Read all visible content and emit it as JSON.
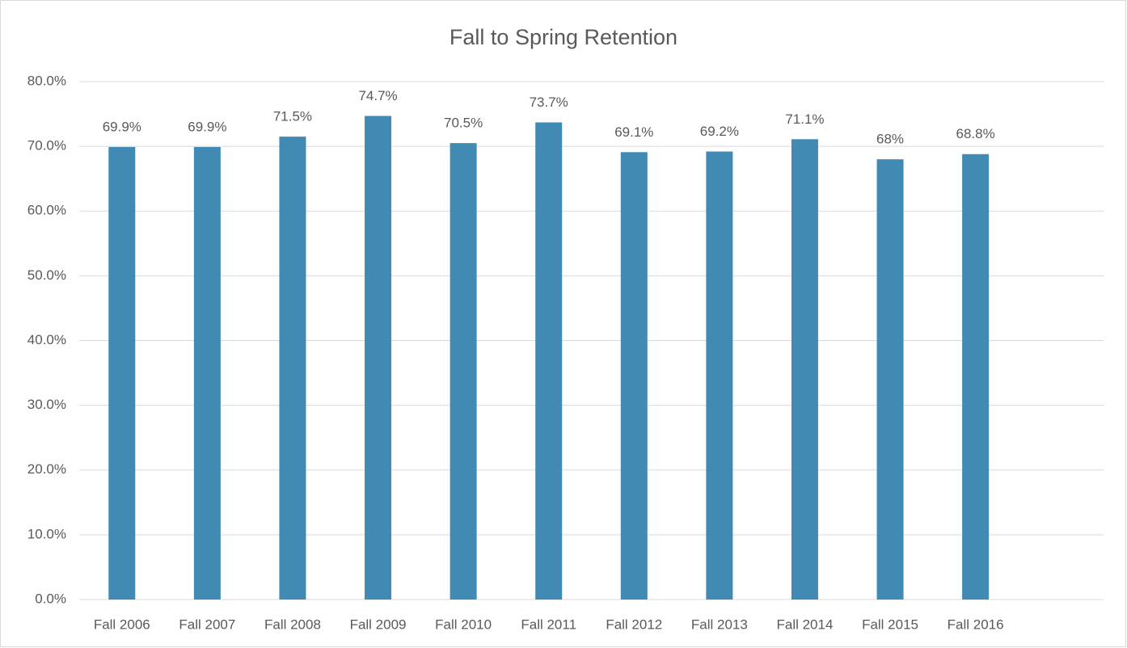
{
  "chart_data": {
    "type": "bar",
    "title": "Fall to Spring Retention",
    "categories": [
      "Fall 2006",
      "Fall 2007",
      "Fall 2008",
      "Fall 2009",
      "Fall 2010",
      "Fall 2011",
      "Fall 2012",
      "Fall 2013",
      "Fall 2014",
      "Fall 2015",
      "Fall 2016",
      null
    ],
    "values": [
      69.9,
      69.9,
      71.5,
      74.7,
      70.5,
      73.7,
      69.1,
      69.2,
      71.1,
      68,
      68.8,
      null
    ],
    "value_labels": [
      "69.9%",
      "69.9%",
      "71.5%",
      "74.7%",
      "70.5%",
      "73.7%",
      "69.1%",
      "69.2%",
      "71.1%",
      "68%",
      "68.8%",
      null
    ],
    "color": "#418ab3",
    "ylim": [
      0,
      80
    ],
    "yticks": [
      {
        "value": 0,
        "label": "0.0%"
      },
      {
        "value": 10,
        "label": "10.0%"
      },
      {
        "value": 20,
        "label": "20.0%"
      },
      {
        "value": 30,
        "label": "30.0%"
      },
      {
        "value": 40,
        "label": "40.0%"
      },
      {
        "value": 50,
        "label": "50.0%"
      },
      {
        "value": 60,
        "label": "60.0%"
      },
      {
        "value": 70,
        "label": "70.0%"
      },
      {
        "value": 80,
        "label": "80.0%"
      }
    ],
    "grid": true
  }
}
